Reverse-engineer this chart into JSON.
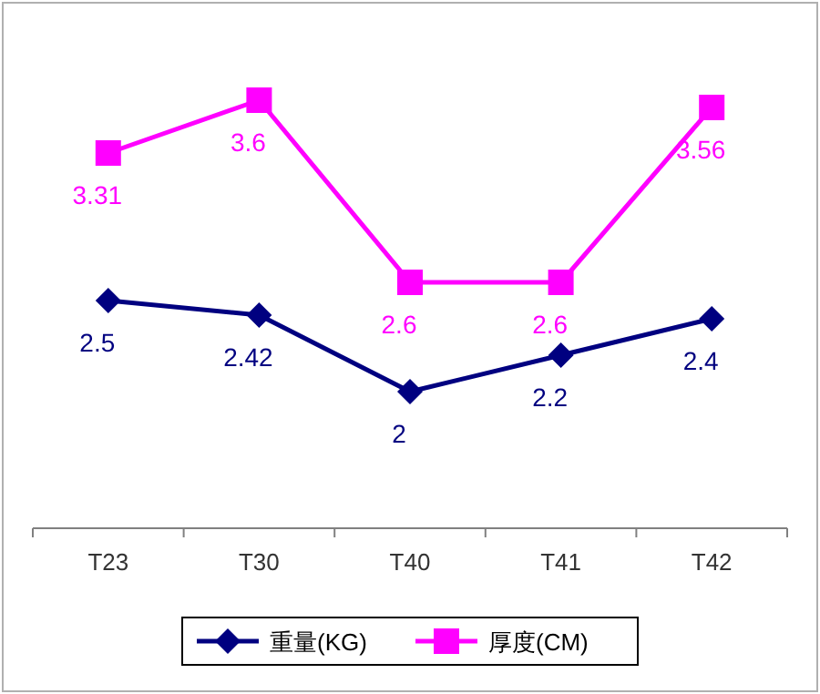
{
  "chart_data": {
    "type": "line",
    "categories": [
      "T23",
      "T30",
      "T40",
      "T41",
      "T42"
    ],
    "series": [
      {
        "name": "重量(KG)",
        "color": "#000080",
        "marker": "diamond",
        "values": [
          2.5,
          2.42,
          2,
          2.2,
          2.4
        ]
      },
      {
        "name": "厚度(CM)",
        "color": "#ff00ff",
        "marker": "square",
        "values": [
          3.31,
          3.6,
          2.6,
          2.6,
          3.56
        ]
      }
    ],
    "data_labels": true,
    "legend": "bottom"
  }
}
